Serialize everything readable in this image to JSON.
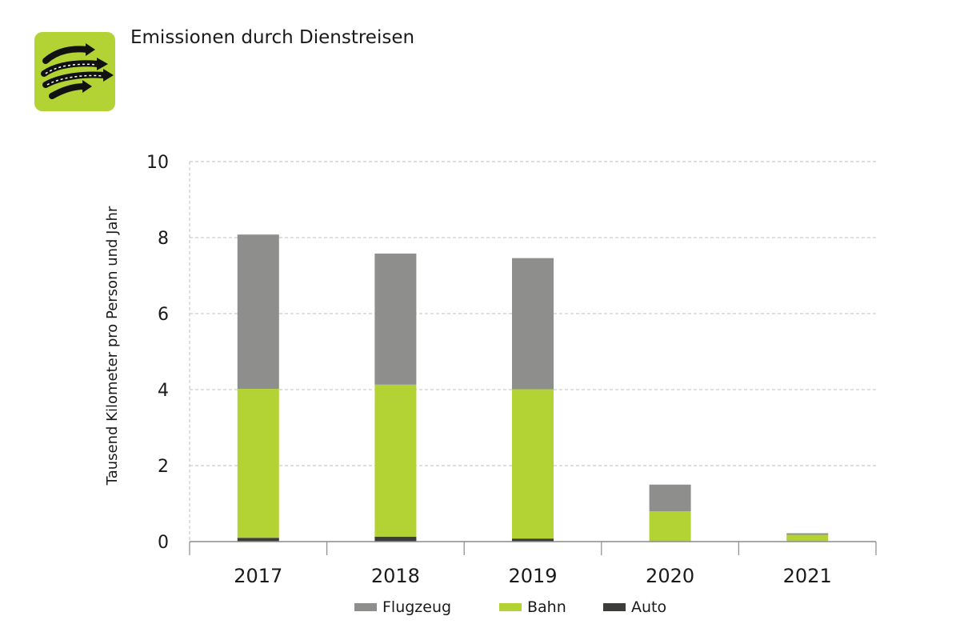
{
  "header": {
    "title": "Emissionen durch Dienstreisen",
    "icon": "travel-arrows-icon",
    "icon_color": "#b3d335"
  },
  "chart_data": {
    "type": "bar",
    "stacked": true,
    "categories": [
      "2017",
      "2018",
      "2019",
      "2020",
      "2021"
    ],
    "series": [
      {
        "name": "Auto",
        "color": "#3c3c3b",
        "values": [
          0.1,
          0.13,
          0.08,
          0.0,
          0.0
        ]
      },
      {
        "name": "Bahn",
        "color": "#b3d335",
        "values": [
          3.92,
          4.0,
          3.93,
          0.8,
          0.18
        ]
      },
      {
        "name": "Flugzeug",
        "color": "#8e8e8c",
        "values": [
          4.06,
          3.45,
          3.45,
          0.7,
          0.04
        ]
      }
    ],
    "legend_order": [
      "Flugzeug",
      "Bahn",
      "Auto"
    ],
    "ylabel": "Tausend Kilometer pro Person  und Jahr",
    "xlabel": "",
    "ylim": [
      0,
      10
    ],
    "yticks": [
      0,
      2,
      4,
      6,
      8,
      10
    ],
    "grid": true,
    "legend_position": "bottom"
  }
}
